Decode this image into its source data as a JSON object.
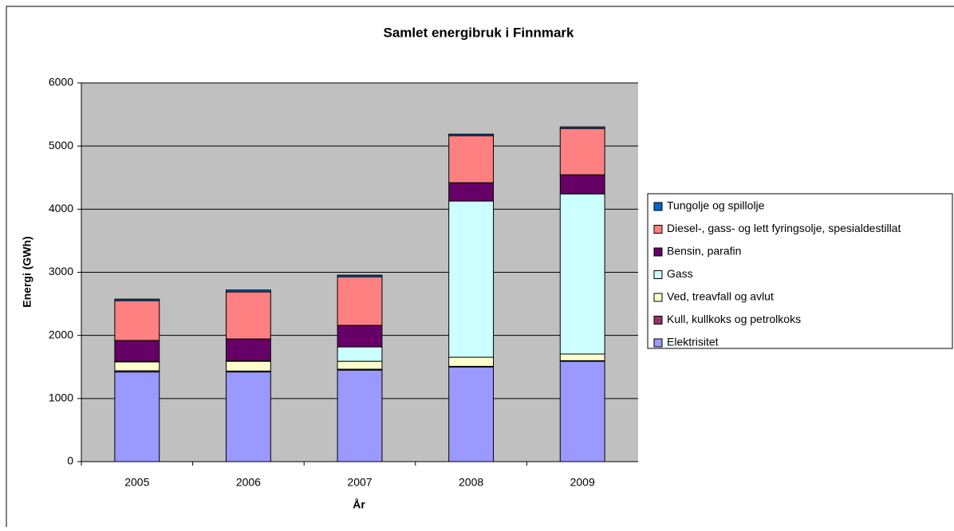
{
  "chart_data": {
    "type": "bar",
    "stacked": true,
    "title": "Samlet energibruk i Finnmark",
    "x_label": "År",
    "y_label": "Energi (GWh)",
    "categories": [
      "2005",
      "2006",
      "2007",
      "2008",
      "2009"
    ],
    "ylim": [
      0,
      6000
    ],
    "yticks": [
      0,
      1000,
      2000,
      3000,
      4000,
      5000,
      6000
    ],
    "grid": true,
    "series": [
      {
        "name": "Elektrisitet",
        "color": "#9999ff",
        "values": [
          1420,
          1420,
          1450,
          1500,
          1590
        ]
      },
      {
        "name": "Kull, kullkoks og petrolkoks",
        "color": "#993366",
        "values": [
          20,
          15,
          15,
          10,
          10
        ]
      },
      {
        "name": "Ved, treavfall og avlut",
        "color": "#ffffcc",
        "values": [
          140,
          155,
          125,
          144,
          105
        ]
      },
      {
        "name": "Gass",
        "color": "#ccffff",
        "values": [
          10,
          10,
          228,
          2475,
          2537
        ]
      },
      {
        "name": "Bensin, parafin",
        "color": "#660066",
        "values": [
          330,
          344,
          341,
          290,
          303
        ]
      },
      {
        "name": "Diesel-, gass- og lett fyringsolje, spesialdestillat",
        "color": "#ff8080",
        "values": [
          630,
          745,
          770,
          745,
          733
        ]
      },
      {
        "name": "Tungolje og spillolje",
        "color": "#0066cc",
        "values": [
          25,
          30,
          25,
          25,
          25
        ]
      }
    ]
  }
}
